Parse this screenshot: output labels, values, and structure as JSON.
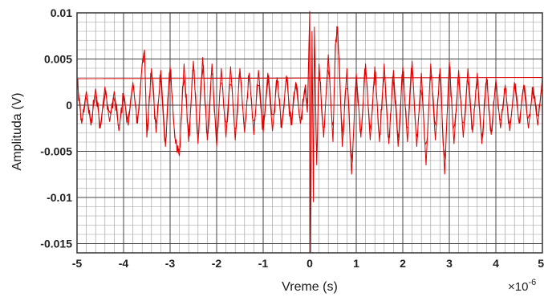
{
  "chart_data": {
    "type": "line",
    "title": "",
    "xlabel": "Vreme (s)",
    "ylabel": "Amplituda (V)",
    "x_exponent_base": "×10",
    "x_exponent_power": "-6",
    "xlim": [
      -5e-06,
      5e-06
    ],
    "ylim": [
      -0.016,
      0.01
    ],
    "x_ticks": [
      -5,
      -4,
      -3,
      -2,
      -1,
      0,
      1,
      2,
      3,
      4,
      5
    ],
    "x_tick_labels": [
      "-5",
      "-4",
      "-3",
      "-2",
      "-1",
      "0",
      "1",
      "2",
      "3",
      "4",
      "5"
    ],
    "y_ticks": [
      0.01,
      0.005,
      0,
      -0.005,
      -0.01,
      -0.015
    ],
    "y_tick_labels": [
      "0.01",
      "0.005",
      "0",
      "-0.005",
      "-0.01",
      "-0.015"
    ],
    "grid": true,
    "grid_minor": true,
    "series": [
      {
        "color": "#e00000",
        "x_unit": "microseconds (×10^-6 s)",
        "x": [
          -5.0,
          -4.9,
          -4.8,
          -4.7,
          -4.6,
          -4.5,
          -4.4,
          -4.3,
          -4.2,
          -4.1,
          -4.0,
          -3.9,
          -3.8,
          -3.7,
          -3.6,
          -3.55,
          -3.5,
          -3.4,
          -3.3,
          -3.2,
          -3.1,
          -3.0,
          -2.9,
          -2.8,
          -2.7,
          -2.6,
          -2.5,
          -2.4,
          -2.3,
          -2.2,
          -2.1,
          -2.0,
          -1.9,
          -1.8,
          -1.7,
          -1.6,
          -1.5,
          -1.4,
          -1.3,
          -1.2,
          -1.1,
          -1.0,
          -0.9,
          -0.8,
          -0.7,
          -0.6,
          -0.5,
          -0.4,
          -0.3,
          -0.2,
          -0.1,
          -0.05,
          0.0,
          0.02,
          0.05,
          0.08,
          0.1,
          0.15,
          0.2,
          0.3,
          0.4,
          0.5,
          0.55,
          0.6,
          0.7,
          0.8,
          0.9,
          1.0,
          1.1,
          1.2,
          1.3,
          1.4,
          1.5,
          1.6,
          1.7,
          1.8,
          1.9,
          2.0,
          2.1,
          2.2,
          2.3,
          2.4,
          2.5,
          2.6,
          2.7,
          2.8,
          2.9,
          3.0,
          3.1,
          3.2,
          3.3,
          3.4,
          3.5,
          3.6,
          3.7,
          3.8,
          3.9,
          4.0,
          4.1,
          4.2,
          4.3,
          4.4,
          4.5,
          4.6,
          4.7,
          4.8,
          4.9,
          5.0
        ],
        "y": [
          0.0028,
          -0.002,
          0.0015,
          -0.0022,
          0.0018,
          -0.0025,
          0.002,
          -0.0018,
          0.0015,
          -0.0028,
          0.0012,
          -0.0022,
          0.0025,
          -0.002,
          0.0045,
          0.006,
          -0.0035,
          0.004,
          -0.003,
          0.0038,
          -0.0045,
          0.0042,
          -0.0035,
          -0.0055,
          0.0045,
          -0.004,
          0.0048,
          -0.0042,
          0.0052,
          -0.0038,
          0.0045,
          -0.0045,
          0.004,
          -0.0035,
          0.0042,
          -0.0038,
          0.004,
          -0.003,
          0.0035,
          -0.0032,
          0.0038,
          -0.003,
          0.0035,
          -0.0028,
          0.003,
          -0.0025,
          0.0032,
          -0.0022,
          0.0025,
          -0.002,
          0.0018,
          -0.0008,
          0.0102,
          -0.016,
          0.008,
          -0.0105,
          0.0085,
          -0.0065,
          0.0045,
          -0.0035,
          0.0055,
          -0.004,
          0.0065,
          0.0085,
          -0.0045,
          0.004,
          -0.0075,
          0.0035,
          -0.0035,
          0.0045,
          -0.0038,
          0.0042,
          -0.004,
          0.0045,
          -0.0042,
          0.0038,
          -0.0045,
          0.0042,
          -0.004,
          0.0048,
          -0.0045,
          0.0035,
          -0.0065,
          0.0045,
          -0.0038,
          0.004,
          -0.0075,
          0.0048,
          -0.0042,
          0.0038,
          -0.0035,
          0.004,
          -0.003,
          0.0035,
          -0.0042,
          0.003,
          -0.0032,
          0.0028,
          -0.0025,
          0.0022,
          -0.0028,
          0.0025,
          -0.002,
          0.0022,
          -0.0025,
          0.002,
          -0.0022,
          0.003
        ]
      }
    ]
  }
}
